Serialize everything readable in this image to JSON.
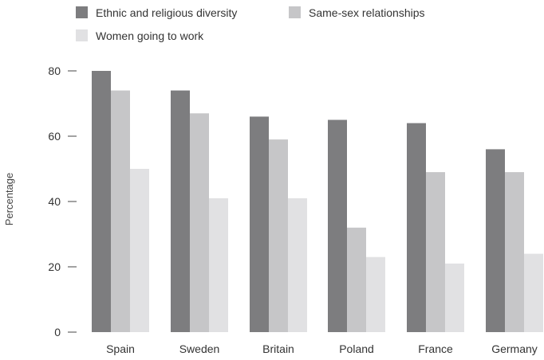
{
  "chart_data": {
    "type": "bar",
    "ylabel": "Percentage",
    "categories": [
      "Spain",
      "Sweden",
      "Britain",
      "Poland",
      "France",
      "Germany"
    ],
    "series": [
      {
        "name": "Ethnic and religious diversity",
        "color": "#7d7d7f",
        "values": [
          80,
          74,
          66,
          65,
          64,
          56
        ]
      },
      {
        "name": "Same-sex relationships",
        "color": "#c6c6c8",
        "values": [
          74,
          67,
          59,
          32,
          49,
          49
        ]
      },
      {
        "name": "Women going to work",
        "color": "#e1e1e3",
        "values": [
          50,
          41,
          41,
          23,
          21,
          24
        ]
      }
    ],
    "y_ticks": [
      0,
      20,
      40,
      60,
      80
    ],
    "ylim": [
      0,
      80
    ],
    "grid": false,
    "legend_position": "top-left"
  }
}
